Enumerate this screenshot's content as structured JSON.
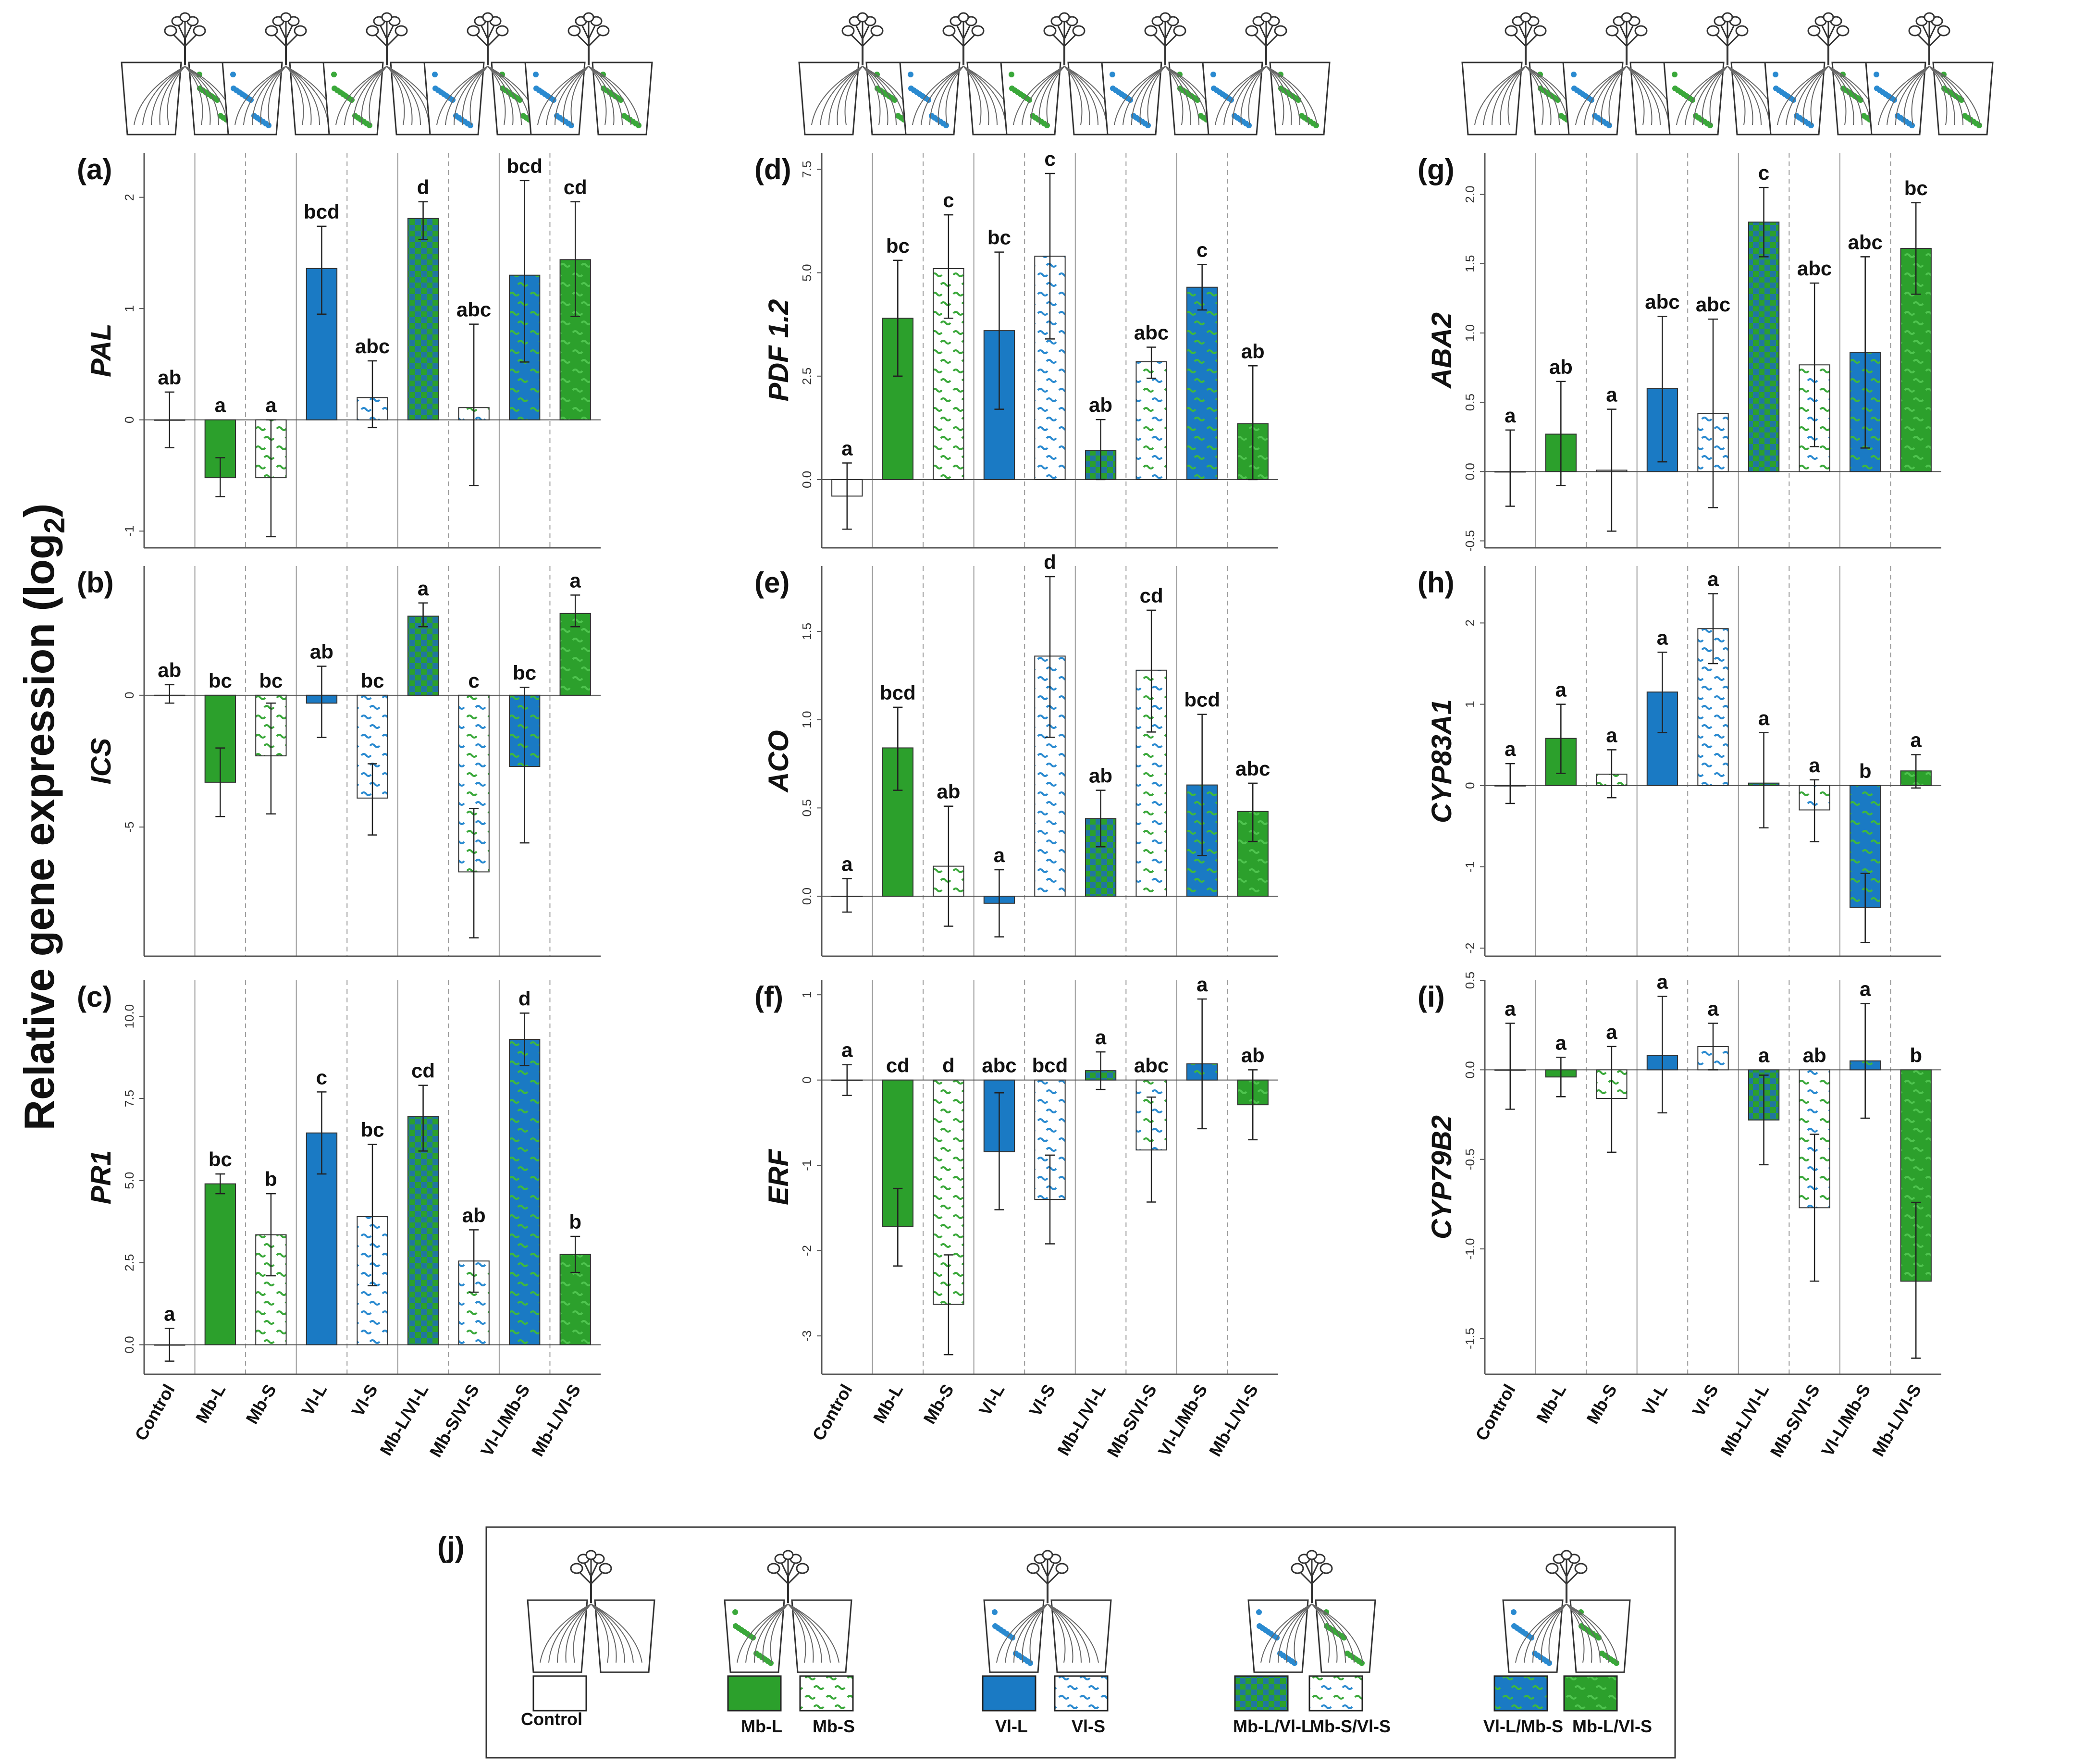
{
  "figure": {
    "y_axis_title": "Relative gene expression (log",
    "y_axis_title_sub": "2",
    "y_axis_title_end": ")",
    "legend_panel_label": "(j)"
  },
  "colors": {
    "mb_green": "#2ca02c",
    "vl_blue": "#1a7ac4",
    "mb_wave": "#3aa83a",
    "vl_wave": "#2a8ad0",
    "axis": "#555555",
    "grid_solid": "#9a9a9a",
    "grid_dashed": "#9a9a9a"
  },
  "legend": [
    {
      "label": "Control",
      "style": "control"
    },
    {
      "label": "Mb-L",
      "style": "mb-l"
    },
    {
      "label": "Mb-S",
      "style": "mb-s"
    },
    {
      "label": "Vl-L",
      "style": "vl-l"
    },
    {
      "label": "Vl-S",
      "style": "vl-s"
    },
    {
      "label": "Mb-L/Vl-L",
      "style": "mbl-vll"
    },
    {
      "label": "Mb-S/Vl-S",
      "style": "mbs-vls"
    },
    {
      "label": "Vl-L/Mb-S",
      "style": "vll-mbs"
    },
    {
      "label": "Mb-L/Vl-S",
      "style": "mbl-vls"
    }
  ],
  "chart_data": [
    {
      "type": "bar",
      "panel": "(a)",
      "gene": "PAL",
      "categories": [
        "Control",
        "Mb-L",
        "Mb-S",
        "Vl-L",
        "Vl-S",
        "Mb-L/Vl-L",
        "Mb-S/Vl-S",
        "Vl-L/Mb-S",
        "Mb-L/Vl-S"
      ],
      "styles": [
        "control",
        "mb-l",
        "mb-s",
        "vl-l",
        "vl-s",
        "mbl-vll",
        "mbs-vls",
        "vll-mbs",
        "mbl-vls"
      ],
      "values": [
        0,
        -0.52,
        -0.52,
        1.36,
        0.2,
        1.81,
        0.11,
        1.3,
        1.44
      ],
      "err_low": [
        -0.25,
        -0.69,
        -1.05,
        0.95,
        -0.07,
        1.62,
        -0.59,
        0.52,
        0.93
      ],
      "err_high": [
        0.25,
        -0.34,
        0.0,
        1.74,
        0.53,
        1.96,
        0.86,
        2.15,
        1.96
      ],
      "letters": [
        "ab",
        "a",
        "a",
        "bcd",
        "abc",
        "d",
        "abc",
        "bcd",
        "cd"
      ],
      "ylim": [
        -1.15,
        2.4
      ],
      "yticks": [
        -1,
        0,
        1,
        2
      ],
      "ytick_labels": [
        "-1",
        "0",
        "1",
        "2"
      ]
    },
    {
      "type": "bar",
      "panel": "(b)",
      "gene": "ICS",
      "categories": [
        "Control",
        "Mb-L",
        "Mb-S",
        "Vl-L",
        "Vl-S",
        "Mb-L/Vl-L",
        "Mb-S/Vl-S",
        "Vl-L/Mb-S",
        "Mb-L/Vl-S"
      ],
      "styles": [
        "control",
        "mb-l",
        "mb-s",
        "vl-l",
        "vl-s",
        "mbl-vll",
        "mbs-vls",
        "vll-mbs",
        "mbl-vls"
      ],
      "values": [
        0,
        -3.3,
        -2.3,
        -0.3,
        -3.9,
        3.0,
        -6.7,
        -2.7,
        3.1
      ],
      "err_low": [
        -0.3,
        -4.6,
        -4.5,
        -1.6,
        -5.3,
        2.6,
        -9.2,
        -5.6,
        2.6
      ],
      "err_high": [
        0.4,
        -2.0,
        -0.3,
        1.1,
        -2.6,
        3.5,
        -4.3,
        0.3,
        3.8
      ],
      "letters": [
        "ab",
        "bc",
        "bc",
        "ab",
        "bc",
        "a",
        "c",
        "bc",
        "a"
      ],
      "ylim": [
        -9.9,
        4.9
      ],
      "yticks": [
        -5,
        0
      ],
      "ytick_labels": [
        "-5",
        "0"
      ]
    },
    {
      "type": "bar",
      "panel": "(c)",
      "gene": "PR1",
      "categories": [
        "Control",
        "Mb-L",
        "Mb-S",
        "Vl-L",
        "Vl-S",
        "Mb-L/Vl-L",
        "Mb-S/Vl-S",
        "Vl-L/Mb-S",
        "Mb-L/Vl-S"
      ],
      "styles": [
        "control",
        "mb-l",
        "mb-s",
        "vl-l",
        "vl-s",
        "mbl-vll",
        "mbs-vls",
        "vll-mbs",
        "mbl-vls"
      ],
      "values": [
        0,
        4.9,
        3.35,
        6.45,
        3.9,
        6.95,
        2.55,
        9.3,
        2.75
      ],
      "err_low": [
        -0.5,
        4.6,
        2.1,
        5.2,
        1.8,
        5.9,
        1.6,
        8.5,
        2.2
      ],
      "err_high": [
        0.5,
        5.2,
        4.6,
        7.7,
        6.1,
        7.9,
        3.5,
        10.1,
        3.3
      ],
      "letters": [
        "a",
        "bc",
        "b",
        "c",
        "bc",
        "cd",
        "ab",
        "d",
        "b"
      ],
      "ylim": [
        -0.9,
        11.1
      ],
      "yticks": [
        0,
        2.5,
        5,
        7.5,
        10
      ],
      "ytick_labels": [
        "0.0",
        "2.5",
        "5.0",
        "7.5",
        "10.0"
      ]
    },
    {
      "type": "bar",
      "panel": "(d)",
      "gene": "PDF 1.2",
      "categories": [
        "Control",
        "Mb-L",
        "Mb-S",
        "Vl-L",
        "Vl-S",
        "Mb-L/Vl-L",
        "Mb-S/Vl-S",
        "Vl-L/Mb-S",
        "Mb-L/Vl-S"
      ],
      "styles": [
        "control",
        "mb-l",
        "mb-s",
        "vl-l",
        "vl-s",
        "mbl-vll",
        "mbs-vls",
        "vll-mbs",
        "mbl-vls"
      ],
      "values": [
        -0.4,
        3.9,
        5.1,
        3.6,
        5.4,
        0.7,
        2.85,
        4.65,
        1.35
      ],
      "err_low": [
        -1.2,
        2.5,
        3.9,
        1.7,
        3.4,
        0.0,
        2.45,
        4.1,
        0.0
      ],
      "err_high": [
        0.4,
        5.3,
        6.4,
        5.5,
        7.4,
        1.45,
        3.2,
        5.2,
        2.75
      ],
      "letters": [
        "a",
        "bc",
        "c",
        "bc",
        "c",
        "ab",
        "abc",
        "c",
        "ab"
      ],
      "ylim": [
        -1.65,
        7.9
      ],
      "yticks": [
        0,
        2.5,
        5,
        7.5
      ],
      "ytick_labels": [
        "0.0",
        "2.5",
        "5.0",
        "7.5"
      ]
    },
    {
      "type": "bar",
      "panel": "(e)",
      "gene": "ACO",
      "categories": [
        "Control",
        "Mb-L",
        "Mb-S",
        "Vl-L",
        "Vl-S",
        "Mb-L/Vl-L",
        "Mb-S/Vl-S",
        "Vl-L/Mb-S",
        "Mb-L/Vl-S"
      ],
      "styles": [
        "control",
        "mb-l",
        "mb-s",
        "vl-l",
        "vl-s",
        "mbl-vll",
        "mbs-vls",
        "vll-mbs",
        "mbl-vls"
      ],
      "values": [
        0,
        0.84,
        0.17,
        -0.04,
        1.36,
        0.44,
        1.28,
        0.63,
        0.48
      ],
      "err_low": [
        -0.09,
        0.6,
        -0.17,
        -0.23,
        0.9,
        0.28,
        0.93,
        0.23,
        0.31
      ],
      "err_high": [
        0.1,
        1.07,
        0.51,
        0.15,
        1.81,
        0.6,
        1.62,
        1.03,
        0.64
      ],
      "letters": [
        "a",
        "bcd",
        "ab",
        "a",
        "d",
        "ab",
        "cd",
        "bcd",
        "abc"
      ],
      "ylim": [
        -0.34,
        1.87
      ],
      "yticks": [
        0,
        0.5,
        1,
        1.5
      ],
      "ytick_labels": [
        "0.0",
        "0.5",
        "1.0",
        "1.5"
      ]
    },
    {
      "type": "bar",
      "panel": "(f)",
      "gene": "ERF",
      "categories": [
        "Control",
        "Mb-L",
        "Mb-S",
        "Vl-L",
        "Vl-S",
        "Mb-L/Vl-L",
        "Mb-S/Vl-S",
        "Vl-L/Mb-S",
        "Mb-L/Vl-S"
      ],
      "styles": [
        "control",
        "mb-l",
        "mb-s",
        "vl-l",
        "vl-s",
        "mbl-vll",
        "mbs-vls",
        "vll-mbs",
        "mbl-vls"
      ],
      "values": [
        0,
        -1.72,
        -2.63,
        -0.84,
        -1.4,
        0.11,
        -0.82,
        0.19,
        -0.29
      ],
      "err_low": [
        -0.18,
        -2.18,
        -3.22,
        -1.52,
        -1.92,
        -0.11,
        -1.43,
        -0.57,
        -0.7
      ],
      "err_high": [
        0.18,
        -1.27,
        -2.05,
        -0.15,
        -0.88,
        0.33,
        -0.2,
        0.95,
        0.12
      ],
      "letters": [
        "a",
        "cd",
        "d",
        "abc",
        "bcd",
        "a",
        "abc",
        "a",
        "ab"
      ],
      "ylim": [
        -3.45,
        1.17
      ],
      "yticks": [
        -3,
        -2,
        -1,
        0,
        1
      ],
      "ytick_labels": [
        "-3",
        "-2",
        "-1",
        "0",
        "1"
      ]
    },
    {
      "type": "bar",
      "panel": "(g)",
      "gene": "ABA2",
      "categories": [
        "Control",
        "Mb-L",
        "Mb-S",
        "Vl-L",
        "Vl-S",
        "Mb-L/Vl-L",
        "Mb-S/Vl-S",
        "Vl-L/Mb-S",
        "Mb-L/Vl-S"
      ],
      "styles": [
        "control",
        "mb-l",
        "mb-s",
        "vl-l",
        "vl-s",
        "mbl-vll",
        "mbs-vls",
        "vll-mbs",
        "mbl-vls"
      ],
      "values": [
        0,
        0.27,
        0.01,
        0.6,
        0.42,
        1.8,
        0.77,
        0.86,
        1.61
      ],
      "err_low": [
        -0.25,
        -0.1,
        -0.43,
        0.07,
        -0.26,
        1.55,
        0.18,
        0.17,
        1.28
      ],
      "err_high": [
        0.3,
        0.65,
        0.45,
        1.12,
        1.1,
        2.05,
        1.36,
        1.55,
        1.94
      ],
      "letters": [
        "a",
        "ab",
        "a",
        "abc",
        "abc",
        "c",
        "abc",
        "abc",
        "bc"
      ],
      "ylim": [
        -0.55,
        2.3
      ],
      "yticks": [
        -0.5,
        0,
        0.5,
        1,
        1.5,
        2
      ],
      "ytick_labels": [
        "-0.5",
        "0.0",
        "0.5",
        "1.0",
        "1.5",
        "2.0"
      ]
    },
    {
      "type": "bar",
      "panel": "(h)",
      "gene": "CYP83A1",
      "categories": [
        "Control",
        "Mb-L",
        "Mb-S",
        "Vl-L",
        "Vl-S",
        "Mb-L/Vl-L",
        "Mb-S/Vl-S",
        "Vl-L/Mb-S",
        "Mb-L/Vl-S"
      ],
      "styles": [
        "control",
        "mb-l",
        "mb-s",
        "vl-l",
        "vl-s",
        "mbl-vll",
        "mbs-vls",
        "vll-mbs",
        "mbl-vls"
      ],
      "values": [
        0,
        0.58,
        0.14,
        1.15,
        1.93,
        0.03,
        -0.3,
        -1.5,
        0.18
      ],
      "err_low": [
        -0.22,
        0.15,
        -0.15,
        0.65,
        1.5,
        -0.52,
        -0.69,
        -1.93,
        -0.03
      ],
      "err_high": [
        0.27,
        1.0,
        0.44,
        1.64,
        2.36,
        0.65,
        0.07,
        -1.08,
        0.38
      ],
      "letters": [
        "a",
        "a",
        "a",
        "a",
        "a",
        "a",
        "a",
        "b",
        "a"
      ],
      "ylim": [
        -2.1,
        2.7
      ],
      "yticks": [
        -2,
        -1,
        0,
        1,
        2
      ],
      "ytick_labels": [
        "-2",
        "-1",
        "0",
        "1",
        "2"
      ]
    },
    {
      "type": "bar",
      "panel": "(i)",
      "gene": "CYP79B2",
      "categories": [
        "Control",
        "Mb-L",
        "Mb-S",
        "Vl-L",
        "Vl-S",
        "Mb-L/Vl-L",
        "Mb-S/Vl-S",
        "Vl-L/Mb-S",
        "Mb-L/Vl-S"
      ],
      "styles": [
        "control",
        "mb-l",
        "mb-s",
        "vl-l",
        "vl-s",
        "mbl-vll",
        "mbs-vls",
        "vll-mbs",
        "mbl-vls"
      ],
      "values": [
        0,
        -0.04,
        -0.16,
        0.08,
        0.13,
        -0.28,
        -0.77,
        0.05,
        -1.18
      ],
      "err_low": [
        -0.22,
        -0.15,
        -0.46,
        -0.24,
        0.0,
        -0.53,
        -1.18,
        -0.27,
        -1.61
      ],
      "err_high": [
        0.26,
        0.07,
        0.13,
        0.41,
        0.26,
        -0.03,
        -0.36,
        0.37,
        -0.74
      ],
      "letters": [
        "a",
        "a",
        "a",
        "a",
        "a",
        "a",
        "ab",
        "a",
        "b"
      ],
      "ylim": [
        -1.7,
        0.5
      ],
      "yticks": [
        -1.5,
        -1,
        -0.5,
        0,
        0.5
      ],
      "ytick_labels": [
        "-1.5",
        "-1.0",
        "-0.5",
        "0.0",
        "0.5"
      ]
    }
  ]
}
